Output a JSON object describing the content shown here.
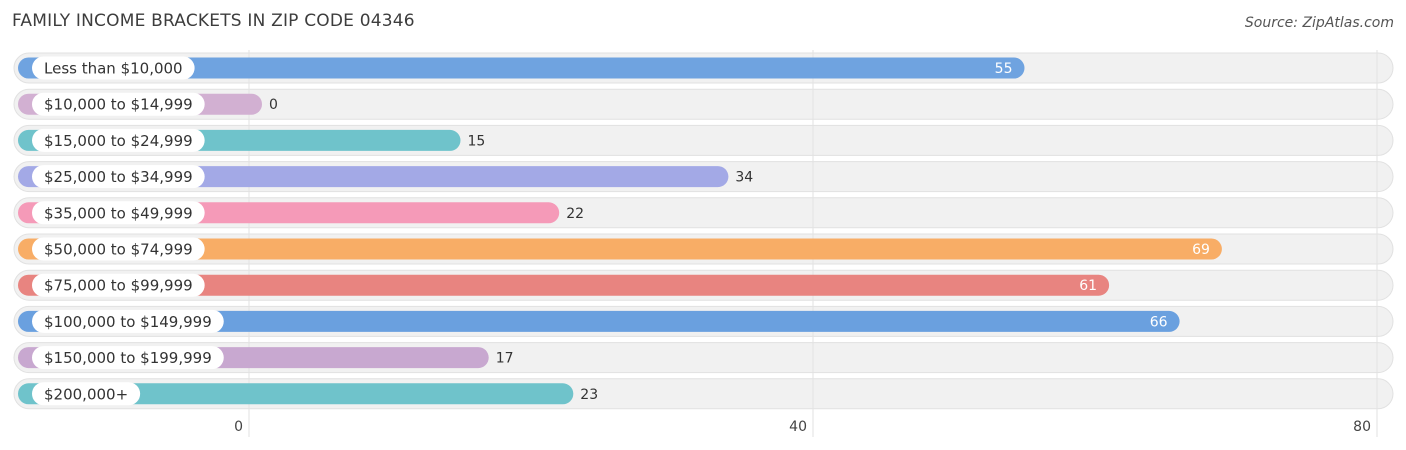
{
  "header": {
    "title": "FAMILY INCOME BRACKETS IN ZIP CODE 04346",
    "source": "Source: ZipAtlas.com"
  },
  "chart_data": {
    "type": "bar",
    "orientation": "horizontal",
    "title": "FAMILY INCOME BRACKETS IN ZIP CODE 04346",
    "xlabel": "",
    "ylabel": "",
    "xlim": [
      0,
      80
    ],
    "ticks": [
      0,
      40,
      80
    ],
    "grid": true,
    "categories": [
      "Less than $10,000",
      "$10,000 to $14,999",
      "$15,000 to $24,999",
      "$25,000 to $34,999",
      "$35,000 to $49,999",
      "$50,000 to $74,999",
      "$75,000 to $99,999",
      "$100,000 to $149,999",
      "$150,000 to $199,999",
      "$200,000+"
    ],
    "values": [
      55,
      0,
      15,
      34,
      22,
      69,
      61,
      66,
      17,
      23
    ],
    "colors": [
      "#6fa3e0",
      "#d2b0d2",
      "#6fc3cb",
      "#a3a9e6",
      "#f59ab8",
      "#f8ad66",
      "#e88480",
      "#6aa0df",
      "#c8a8d0",
      "#6fc3cb"
    ]
  }
}
